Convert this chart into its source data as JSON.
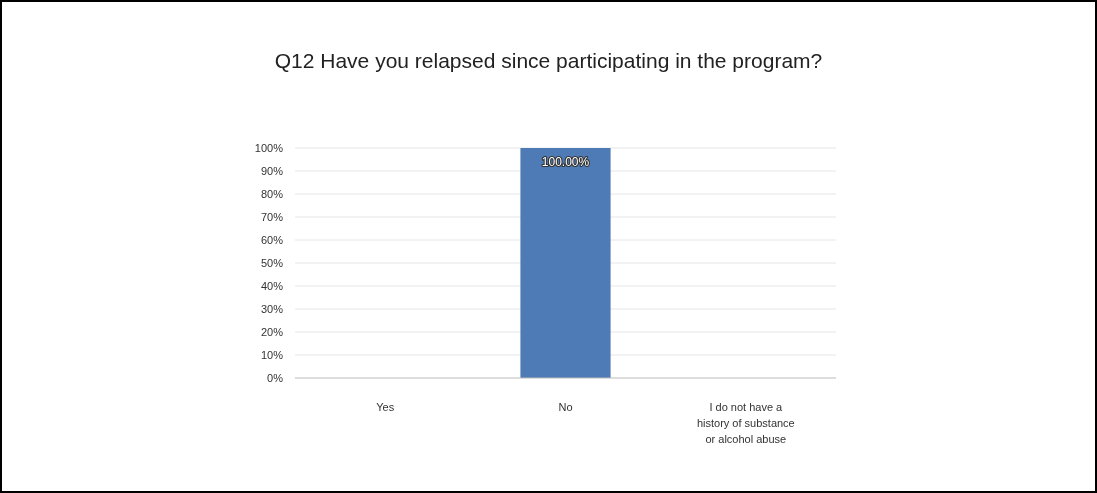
{
  "chart_data": {
    "type": "bar",
    "title": "Q12 Have you relapsed since participating in the program?",
    "categories": [
      "Yes",
      "No",
      "I do not have a history of substance or alcohol abuse"
    ],
    "values": [
      0,
      100,
      0
    ],
    "color": "#4e7ab5",
    "value_labels": [
      null,
      "100.00%",
      null
    ],
    "ylim": [
      0,
      100
    ],
    "yticks": [
      {
        "value": 0,
        "label": "0%"
      },
      {
        "value": 10,
        "label": "10%"
      },
      {
        "value": 20,
        "label": "20%"
      },
      {
        "value": 30,
        "label": "30%"
      },
      {
        "value": 40,
        "label": "40%"
      },
      {
        "value": 50,
        "label": "50%"
      },
      {
        "value": 60,
        "label": "60%"
      },
      {
        "value": 70,
        "label": "70%"
      },
      {
        "value": 80,
        "label": "80%"
      },
      {
        "value": 90,
        "label": "90%"
      },
      {
        "value": 100,
        "label": "100%"
      }
    ],
    "grid": "y"
  }
}
